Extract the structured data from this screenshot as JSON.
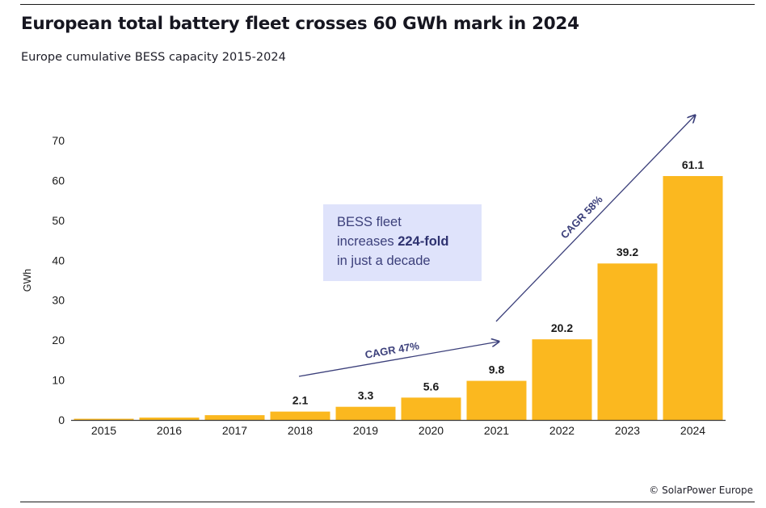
{
  "title": "European total battery fleet crosses 60 GWh mark in 2024",
  "subtitle": "Europe cumulative BESS capacity 2015-2024",
  "credit": "© SolarPower Europe",
  "callout": {
    "line1": "BESS fleet",
    "line2_prefix": "increases ",
    "line2_bold": "224-fold",
    "line3": "in just a decade"
  },
  "annotations": {
    "cagr_early": "CAGR 47%",
    "cagr_late": "CAGR 58%"
  },
  "colors": {
    "bar": "#fbb81f",
    "arrow": "#3b3f7a",
    "callout_bg": "#dfe3fb",
    "text": "#1a1a1a"
  },
  "chart_data": {
    "type": "bar",
    "categories": [
      "2015",
      "2016",
      "2017",
      "2018",
      "2019",
      "2020",
      "2021",
      "2022",
      "2023",
      "2024"
    ],
    "values": [
      0.3,
      0.6,
      1.2,
      2.1,
      3.3,
      5.6,
      9.8,
      20.2,
      39.2,
      61.1
    ],
    "data_labels": [
      "",
      "",
      "",
      "2.1",
      "3.3",
      "5.6",
      "9.8",
      "20.2",
      "39.2",
      "61.1"
    ],
    "ylabel": "GWh",
    "xlabel": "",
    "ylim": [
      0,
      70
    ],
    "yticks": [
      0,
      10,
      20,
      30,
      40,
      50,
      60,
      70
    ],
    "grid": false,
    "legend": "none"
  }
}
